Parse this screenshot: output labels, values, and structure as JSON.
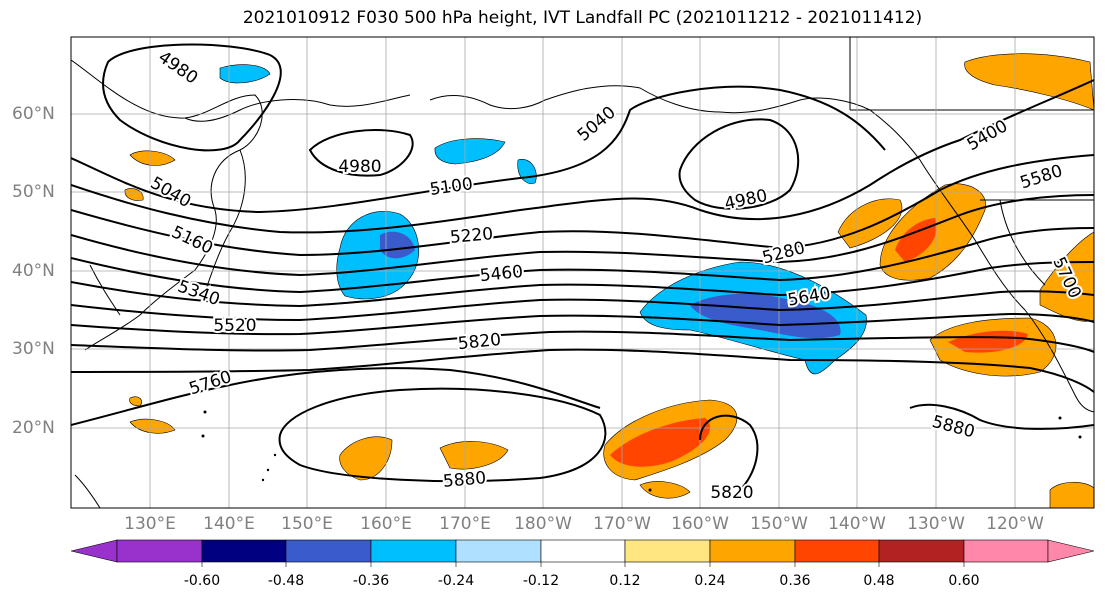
{
  "title": "2021010912 F030 500 hPa height, IVT Landfall PC (2021011212 - 2021011412)",
  "lat_labels": [
    "60°N",
    "50°N",
    "40°N",
    "30°N",
    "20°N"
  ],
  "lon_labels": [
    "130°E",
    "140°E",
    "150°E",
    "160°E",
    "170°E",
    "180°W",
    "170°W",
    "160°W",
    "150°W",
    "140°W",
    "130°W",
    "120°W"
  ],
  "contour_labels": [
    "4980",
    "4980",
    "4980",
    "5040",
    "5040",
    "5100",
    "5160",
    "5220",
    "5280",
    "5340",
    "5400",
    "5460",
    "5520",
    "5580",
    "5640",
    "5700",
    "5760",
    "5820",
    "5820",
    "5880",
    "5880"
  ],
  "colorbar": {
    "labels": [
      "-0.60",
      "-0.48",
      "-0.36",
      "-0.24",
      "-0.12",
      "0.12",
      "0.24",
      "0.36",
      "0.48",
      "0.60"
    ],
    "colors": [
      "#9932cc",
      "#000080",
      "#3a5bcc",
      "#00bfff",
      "#b0e0ff",
      "#ffffff",
      "#ffe680",
      "#ffa500",
      "#ff4500",
      "#b22222",
      "#ff88aa"
    ]
  }
}
